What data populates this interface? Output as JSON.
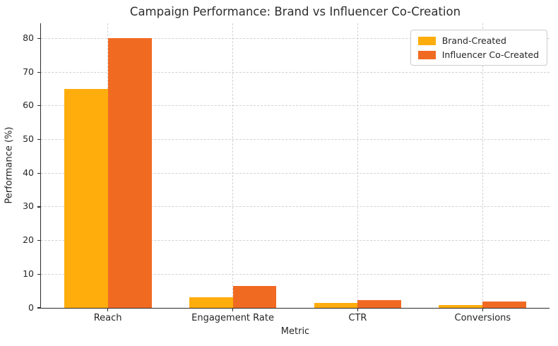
{
  "chart_data": {
    "type": "bar",
    "title": "Campaign Performance: Brand vs Influencer Co-Creation",
    "xlabel": "Metric",
    "ylabel": "Performance (%)",
    "categories": [
      "Reach",
      "Engagement Rate",
      "CTR",
      "Conversions"
    ],
    "series": [
      {
        "name": "Brand-Created",
        "color": "#FFAD0D",
        "values": [
          65,
          3.2,
          1.5,
          0.8
        ]
      },
      {
        "name": "Influencer Co-Created",
        "color": "#F16A22",
        "values": [
          80,
          6.5,
          2.3,
          1.8
        ]
      }
    ],
    "yticks": [
      0,
      10,
      20,
      30,
      40,
      50,
      60,
      70,
      80
    ],
    "ylim": [
      0,
      84.5
    ],
    "bar_width_units": 0.35,
    "x_margin_units": 0.535,
    "grid": "dashed-both",
    "grid_color": "#d2d2d2",
    "legend_position": "upper-right",
    "legend_border_color": "#cccccc",
    "axis_color": "#2b2b2b"
  }
}
